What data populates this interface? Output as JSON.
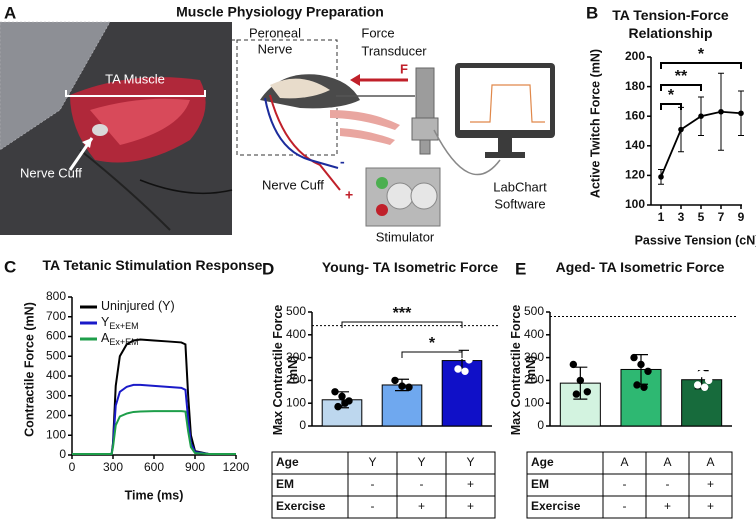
{
  "panel_labels": [
    "A",
    "B",
    "C",
    "D",
    "E"
  ],
  "panel_a": {
    "title": "Muscle Physiology Preparation",
    "muscle": "TA Muscle",
    "cuff_photo": "Nerve Cuff",
    "nerve": [
      "Peroneal",
      "Nerve"
    ],
    "transducer": [
      "Force",
      "Transducer"
    ],
    "force": "F",
    "cuff": "Nerve Cuff",
    "plus": "+",
    "minus": "-",
    "software": [
      "LabChart",
      "Software"
    ],
    "stimulator": "Stimulator"
  },
  "chart_data": [
    {
      "type": "line",
      "title": "TA Tension-Force Relationship",
      "x_label": "Passive Tension (cN)",
      "y_label": "Active Twitch Force (mN)",
      "x": [
        1,
        3,
        5,
        7,
        9
      ],
      "values": [
        119,
        151,
        160,
        163,
        162
      ],
      "errors": [
        5,
        15,
        13,
        26,
        15
      ],
      "color": "#000000",
      "xlim": [
        0,
        9.1
      ],
      "xticks": [
        1,
        3,
        5,
        7,
        9
      ],
      "ylim": [
        100,
        200
      ],
      "yticks": [
        100,
        120,
        140,
        160,
        180,
        200
      ],
      "annotations": [
        "*",
        "**",
        "*"
      ]
    },
    {
      "type": "line",
      "title": "TA Tetanic Stimulation Response",
      "x_label": "Time (ms)",
      "y_label": "Contractile Force (mN)",
      "x": [
        0,
        100,
        200,
        290,
        300,
        320,
        350,
        400,
        450,
        500,
        600,
        700,
        800,
        830,
        850,
        870,
        900,
        1000,
        1100,
        1200
      ],
      "series": [
        {
          "name": "Uninjured (Y)",
          "color": "#000000",
          "values": [
            5,
            5,
            5,
            5,
            60,
            350,
            500,
            560,
            580,
            585,
            580,
            575,
            570,
            560,
            300,
            100,
            20,
            5,
            5,
            5
          ]
        },
        {
          "name": "Y",
          "subscript": "Ex+EM",
          "color": "#1a1ac8",
          "values": [
            5,
            5,
            5,
            5,
            50,
            250,
            320,
            345,
            355,
            355,
            350,
            345,
            340,
            330,
            180,
            60,
            15,
            5,
            5,
            5
          ]
        },
        {
          "name": "A",
          "subscript": "Ex+EM",
          "color": "#1e9e4a",
          "values": [
            5,
            5,
            5,
            5,
            40,
            150,
            195,
            210,
            218,
            220,
            222,
            222,
            222,
            220,
            120,
            40,
            10,
            5,
            5,
            5
          ]
        }
      ],
      "xlim": [
        0,
        1200
      ],
      "xticks": [
        0,
        300,
        600,
        900,
        1200
      ],
      "ylim": [
        0,
        800
      ],
      "yticks": [
        0,
        100,
        200,
        300,
        400,
        500,
        600,
        700,
        800
      ]
    },
    {
      "type": "bar",
      "title": "Young- TA Isometric Force",
      "y_label": "Max Contractile Force (mN)",
      "categories": [
        null,
        null,
        null
      ],
      "values": [
        115,
        180,
        287
      ],
      "errors": [
        35,
        25,
        45
      ],
      "colors": [
        "#bdd7ee",
        "#6fa8ef",
        "#1010c8"
      ],
      "points": [
        [
          150,
          130,
          110,
          85,
          100
        ],
        [
          200,
          175,
          170
        ],
        [
          330,
          310,
          290,
          250,
          240
        ]
      ],
      "reference_line": 440,
      "annotations": [
        "***",
        "*"
      ],
      "ylim": [
        0,
        500
      ],
      "yticks": [
        0,
        100,
        200,
        300,
        400,
        500
      ],
      "table": {
        "rows": [
          [
            "Age",
            "Y",
            "Y",
            "Y"
          ],
          [
            "EM",
            "-",
            "-",
            "+"
          ],
          [
            "Exercise",
            "-",
            "+",
            "+"
          ]
        ]
      }
    },
    {
      "type": "bar",
      "title": "Aged- TA Isometric Force",
      "y_label": "Max Contractile Force (mN)",
      "categories": [
        null,
        null,
        null
      ],
      "values": [
        188,
        248,
        203
      ],
      "errors": [
        70,
        65,
        40
      ],
      "colors": [
        "#d3f3e0",
        "#2eb872",
        "#176b3c"
      ],
      "points": [
        [
          270,
          200,
          150,
          140
        ],
        [
          300,
          270,
          240,
          180,
          170
        ],
        [
          250,
          230,
          200,
          180,
          170
        ]
      ],
      "reference_line": 480,
      "ylim": [
        0,
        500
      ],
      "yticks": [
        0,
        100,
        200,
        300,
        400,
        500
      ],
      "table": {
        "rows": [
          [
            "Age",
            "A",
            "A",
            "A"
          ],
          [
            "EM",
            "-",
            "-",
            "+"
          ],
          [
            "Exercise",
            "-",
            "+",
            "+"
          ]
        ]
      }
    }
  ]
}
